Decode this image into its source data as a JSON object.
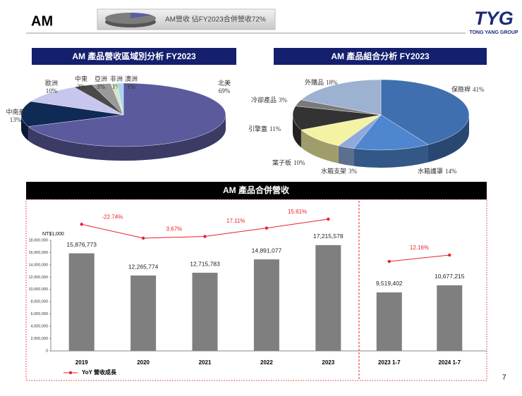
{
  "title": "AM",
  "banner": "AM營收 佔FY2023合併營收72%",
  "logo": "TYG",
  "logo_subtitle": "TONG YANG GROUP",
  "page_number": "7",
  "chart_data": [
    {
      "type": "pie",
      "title": "AM 產品營收區域別分析 FY2023",
      "categories": [
        "北美",
        "中南美",
        "歐洲",
        "中東",
        "亞洲",
        "非洲",
        "澳洲"
      ],
      "values": [
        69,
        13,
        10,
        3,
        3,
        1,
        1
      ],
      "value_labels": [
        "69%",
        "13%",
        "10%",
        "3%",
        "3%",
        "1%",
        "1%"
      ],
      "colors": [
        "#5a5a9c",
        "#0f2a55",
        "#c6c6ee",
        "#4a4a4a",
        "#9a9a9a",
        "#d6e6c0",
        "#a9d3f2"
      ]
    },
    {
      "type": "pie",
      "title": "AM 產品組合分析 FY2023",
      "categories": [
        "保險桿",
        "水箱護罩",
        "水箱支架",
        "葉子板",
        "引擎蓋",
        "冷卻產品",
        "外購品"
      ],
      "values": [
        41,
        14,
        3,
        10,
        11,
        3,
        18
      ],
      "value_labels": [
        "41%",
        "14%",
        "3%",
        "10%",
        "11%",
        "3%",
        "18%"
      ],
      "colors": [
        "#3f6fae",
        "#4f86d0",
        "#8fa9dc",
        "#f4f3a4",
        "#333333",
        "#7a7a7a",
        "#9db2d1"
      ]
    },
    {
      "type": "bar",
      "title": "AM 產品合併營收",
      "y_label": "NT$1,000",
      "categories": [
        "2019",
        "2020",
        "2021",
        "2022",
        "2023",
        "2023 1-7",
        "2024 1-7"
      ],
      "values": [
        15876773,
        12265774,
        12715783,
        14891077,
        17215578,
        9519402,
        10677215
      ],
      "value_labels": [
        "15,876,773",
        "12,265,774",
        "12,715,783",
        "14,891,077",
        "17,215,578",
        "9,519,402",
        "10,677,215"
      ],
      "color": "#7f7f7f",
      "ylim": [
        0,
        18000000
      ],
      "yticks": [
        0,
        {
          "value": 2000000,
          "label": "2,000,000"
        },
        {
          "value": 4000000,
          "label": "4,000,000"
        },
        {
          "value": 6000000,
          "label": "6,000,000"
        },
        {
          "value": 8000000,
          "label": "8,000,000"
        },
        {
          "value": 10000000,
          "label": "10,000,000"
        },
        {
          "value": 12000000,
          "label": "12,000,000"
        },
        {
          "value": 14000000,
          "label": "14,000,000"
        },
        {
          "value": 16000000,
          "label": "16,000,000"
        },
        {
          "value": 18000000,
          "label": "18,000,000"
        }
      ],
      "line": {
        "name": "YoY 營收成長",
        "color": "#e8202a",
        "values": [
          null,
          -22.74,
          3.67,
          17.11,
          15.61,
          null,
          12.16
        ],
        "value_labels": [
          null,
          "-22.74%",
          "3.67%",
          "17.11%",
          "15.61%",
          null,
          "12.16%"
        ]
      },
      "legend": "bottom-left"
    }
  ]
}
